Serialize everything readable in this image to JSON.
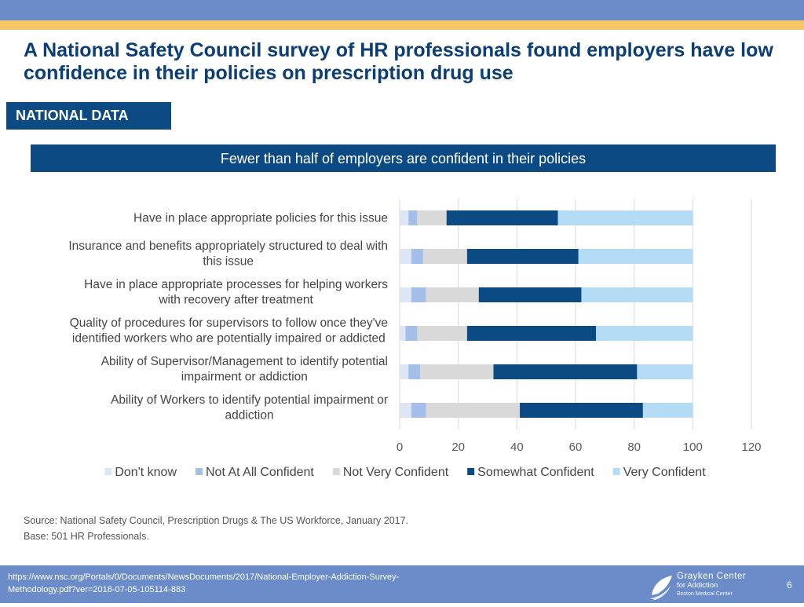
{
  "title": "A National Safety Council survey of HR professionals found employers have low confidence in their policies on prescription drug use",
  "section_label": "NATIONAL DATA",
  "banner_text": "Fewer than half of employers are confident in their policies",
  "source": "Source: National Safety Council, Prescription Drugs & The US Workforce, January 2017. Base: 501 HR Professionals.",
  "footer": {
    "url": "https://www.nsc.org/Portals/0/Documents/NewsDocuments/2017/National-Employer-Addiction-Survey-Methodology.pdf?ver=2018-07-05-105114-883",
    "logo_line1": "Grayken Center",
    "logo_line2": "for Addiction",
    "logo_line3": "Boston Medical Center",
    "page_number": "6"
  },
  "chart_data": {
    "type": "bar",
    "orientation": "horizontal",
    "stacked": true,
    "categories": [
      [
        "Have in place appropriate policies for this issue"
      ],
      [
        "Insurance and benefits appropriately structured to deal with",
        "this issue"
      ],
      [
        "Have in place appropriate processes for helping workers",
        "with recovery after treatment"
      ],
      [
        "Quality of procedures for supervisors to follow once they've",
        "identified workers who are potentially impaired or addicted"
      ],
      [
        "Ability of Supervisor/Management to identify potential",
        "impairment or addiction"
      ],
      [
        "Ability of Workers to identify potential impairment or",
        "addiction"
      ]
    ],
    "series": [
      {
        "name": "Don't know",
        "color": "#dce6f4",
        "values": [
          3,
          4,
          4,
          2,
          3,
          4
        ]
      },
      {
        "name": "Not At All Confident",
        "color": "#a3bfe9",
        "values": [
          3,
          4,
          5,
          4,
          4,
          5
        ]
      },
      {
        "name": "Not Very Confident",
        "color": "#d9d9d9",
        "values": [
          10,
          15,
          18,
          17,
          25,
          32
        ]
      },
      {
        "name": "Somewhat Confident",
        "color": "#0b4a82",
        "values": [
          38,
          38,
          35,
          44,
          49,
          42
        ]
      },
      {
        "name": "Very Confident",
        "color": "#b4dcf7",
        "values": [
          46,
          39,
          38,
          33,
          19,
          17
        ]
      }
    ],
    "xlim": [
      0,
      120
    ],
    "xticks": [
      0,
      20,
      40,
      60,
      80,
      100,
      120
    ],
    "grid": true,
    "legend_position": "bottom"
  }
}
